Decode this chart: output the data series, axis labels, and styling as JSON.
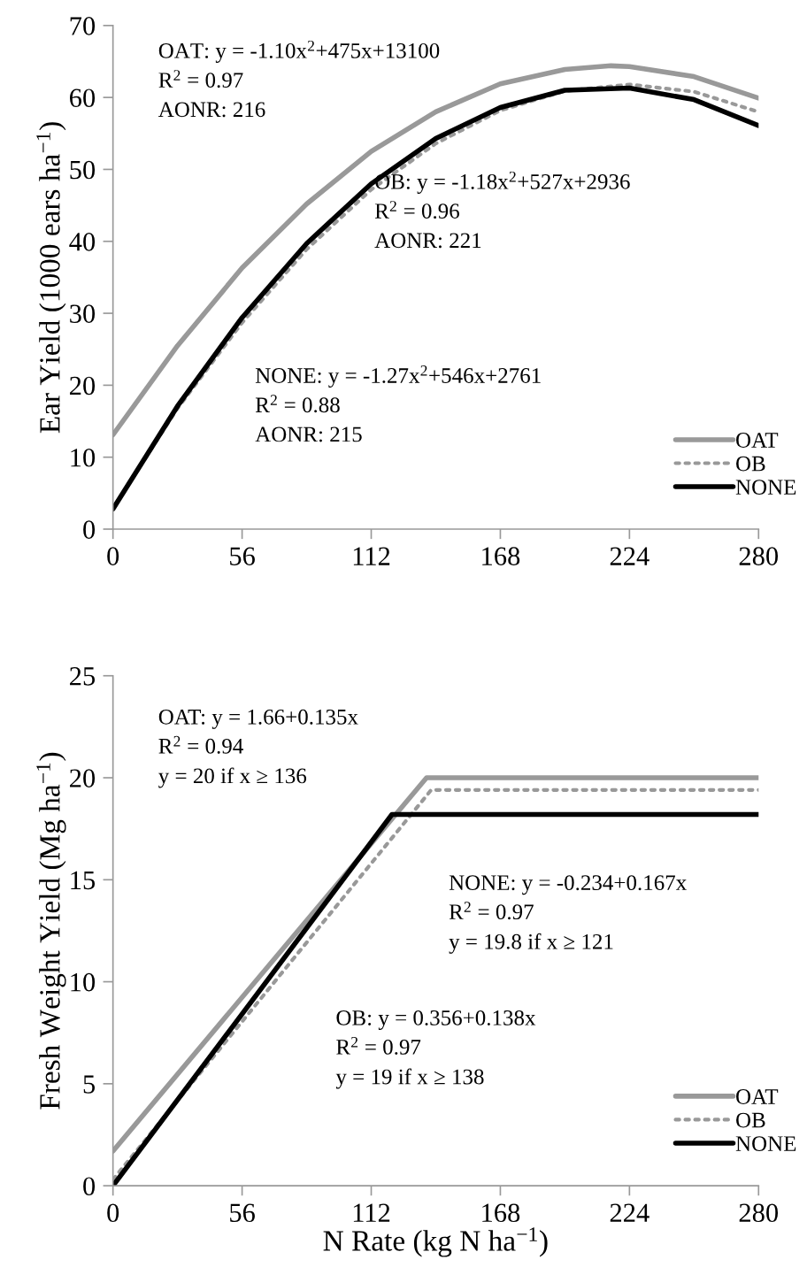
{
  "chart_data": [
    {
      "type": "line",
      "ylabel": "Ear Yield (1000 ears ha$^{−1}$)",
      "xlim": [
        0,
        280
      ],
      "xticks": [
        0,
        56,
        112,
        168,
        224,
        280
      ],
      "ylim": [
        0,
        70
      ],
      "yticks": [
        0,
        10,
        20,
        30,
        40,
        50,
        60,
        70
      ],
      "grid": false,
      "legend": "bottom right",
      "marker": "none",
      "annotations": [
        "OAT: y = -1.10x$^{2}$+475x+13100\nR$^{2}$ = 0.97\nAONR: 216",
        "OB: y = -1.18x$^{2}$+527x+2936\nR$^{2}$ = 0.96\nAONR: 221",
        "NONE: y = -1.27x$^{2}$+546x+2761\nR$^{2}$ = 0.88\nAONR: 215"
      ],
      "series": [
        {
          "name": "OAT",
          "color": "#999999",
          "line_style": "solid",
          "x": [
            0,
            28,
            56,
            84,
            112,
            140,
            168,
            196,
            216,
            224,
            252,
            280
          ],
          "values": [
            13.1,
            25.5,
            36.3,
            45.2,
            52.5,
            58.0,
            61.9,
            63.9,
            64.4,
            64.3,
            62.9,
            59.9
          ]
        },
        {
          "name": "OB",
          "color": "#999999",
          "line_style": "dotted",
          "x": [
            0,
            28,
            56,
            84,
            112,
            140,
            168,
            196,
            224,
            252,
            280
          ],
          "values": [
            2.9,
            16.8,
            28.7,
            38.9,
            47.2,
            53.6,
            58.2,
            60.9,
            61.8,
            60.8,
            58.0
          ]
        },
        {
          "name": "NONE",
          "color": "#000000",
          "line_style": "solid",
          "x": [
            0,
            28,
            56,
            84,
            112,
            140,
            168,
            196,
            224,
            252,
            280
          ],
          "values": [
            2.8,
            17.1,
            29.4,
            39.7,
            48.0,
            54.3,
            58.6,
            61.0,
            61.3,
            59.7,
            56.1
          ]
        }
      ]
    },
    {
      "type": "line",
      "xlabel": "N Rate (kg N ha$^{−1}$)",
      "ylabel": "Fresh Weight Yield (Mg ha$^{−1}$)",
      "xlim": [
        0,
        280
      ],
      "xticks": [
        0,
        56,
        112,
        168,
        224,
        280
      ],
      "ylim": [
        0,
        25
      ],
      "yticks": [
        0,
        5,
        10,
        15,
        20,
        25
      ],
      "grid": false,
      "legend": "bottom right",
      "marker": "none",
      "annotations": [
        "OAT: y = 1.66+0.135x\nR$^{2}$ = 0.94\ny = 20 if x ≥ 136",
        "NONE: y = -0.234+0.167x\nR$^{2}$ = 0.97\ny = 19.8 if x ≥ 121",
        "OB: y = 0.356+0.138x\nR$^{2}$ = 0.97\ny = 19 if x ≥ 138"
      ],
      "series": [
        {
          "name": "OAT",
          "color": "#999999",
          "line_style": "solid",
          "x": [
            0,
            136,
            280
          ],
          "values": [
            1.7,
            20.0,
            20.0
          ]
        },
        {
          "name": "OB",
          "color": "#999999",
          "line_style": "dotted",
          "x": [
            0,
            138,
            280
          ],
          "values": [
            0.3,
            19.4,
            19.4
          ]
        },
        {
          "name": "NONE",
          "color": "#000000",
          "line_style": "solid",
          "x": [
            0,
            121,
            280
          ],
          "values": [
            0.0,
            18.2,
            18.2
          ]
        }
      ]
    }
  ]
}
